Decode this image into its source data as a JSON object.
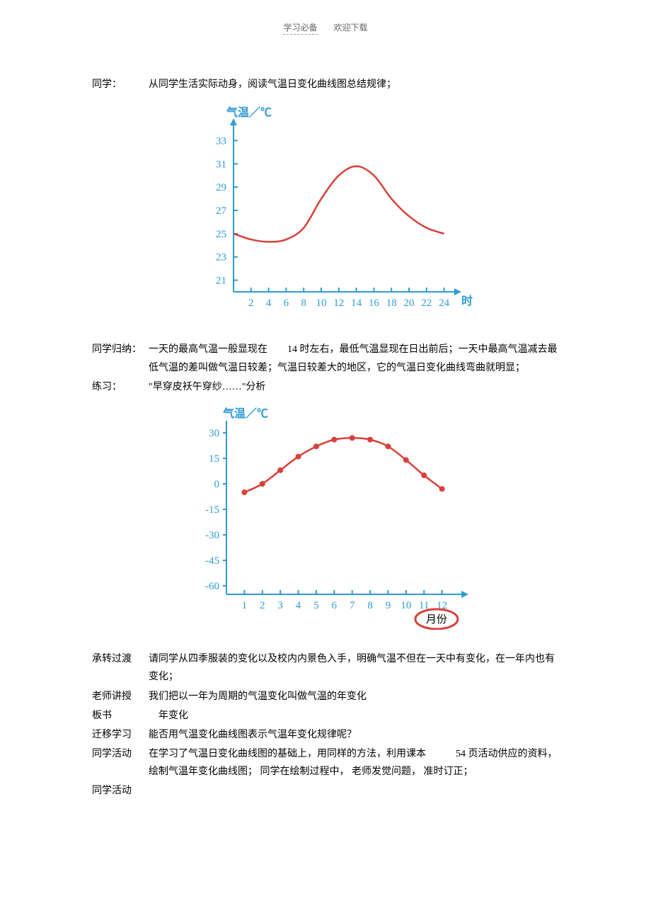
{
  "header": {
    "left": "学习必备",
    "right": "欢迎下载"
  },
  "rows": [
    {
      "label": "同学：",
      "text": "从同学生活实际动身，阅读气温日变化曲线图总结规律；"
    }
  ],
  "chart1": {
    "type": "line",
    "y_label": "气温／℃",
    "x_label": "时",
    "y_ticks": [
      21,
      23,
      25,
      27,
      29,
      31,
      33
    ],
    "x_ticks": [
      2,
      4,
      6,
      8,
      10,
      12,
      14,
      16,
      18,
      20,
      22,
      24
    ],
    "ylim": [
      20,
      34
    ],
    "xlim": [
      0,
      25
    ],
    "line_color": "#d9403a",
    "axis_color": "#2e9bd6",
    "text_color": "#2e9bd6",
    "line_width": 2.5,
    "axis_width": 2,
    "background": "#ffffff",
    "data": {
      "x": [
        0,
        2,
        4,
        6,
        8,
        10,
        12,
        14,
        16,
        18,
        20,
        22,
        24
      ],
      "y": [
        25,
        24.5,
        24.3,
        24.5,
        25.5,
        28,
        30,
        30.8,
        30,
        28,
        26.5,
        25.5,
        25
      ]
    }
  },
  "rows2": [
    {
      "label": "同学归纳：",
      "text": "一天的最高气温一般显现在　　14 时左右，最低气温显现在日出前后；一天中最高气温减去最低气温的差叫做气温日较差；气温日较差大的地区，它的气温日变化曲线弯曲就明显；"
    },
    {
      "label": "练习：",
      "text": "\"早穿皮袄午穿纱……\"分析"
    }
  ],
  "chart2": {
    "type": "line-marker",
    "y_label": "气温／℃",
    "x_label": "月份",
    "y_ticks": [
      -60,
      -45,
      -30,
      -15,
      0,
      15,
      30
    ],
    "x_ticks": [
      1,
      2,
      3,
      4,
      5,
      6,
      7,
      8,
      9,
      10,
      11,
      12
    ],
    "ylim": [
      -65,
      35
    ],
    "xlim": [
      0,
      13
    ],
    "line_color": "#d9403a",
    "marker_color": "#d9403a",
    "axis_color": "#2e9bd6",
    "text_color": "#2e9bd6",
    "line_width": 2.5,
    "axis_width": 2,
    "marker_size": 4,
    "circle_color": "#d9403a",
    "background": "#ffffff",
    "data": {
      "x": [
        1,
        2,
        3,
        4,
        5,
        6,
        7,
        8,
        9,
        10,
        11,
        12
      ],
      "y": [
        -5,
        0,
        8,
        16,
        22,
        26,
        27,
        26,
        22,
        14,
        5,
        -3
      ]
    }
  },
  "rows3": [
    {
      "label": "承转过渡",
      "text": "请同学从四季服装的变化以及校内内景色入手，明确气温不但在一天中有变化，在一年内也有变化；"
    },
    {
      "label": "老师讲授",
      "text": "我们把以一年为周期的气温变化叫做气温的年变化"
    },
    {
      "label": "板书",
      "text": "　年变化"
    },
    {
      "label": "迁移学习",
      "text": "能否用气温变化曲线图表示气温年变化规律呢？"
    },
    {
      "label": "同学活动",
      "text": "在学习了气温日变化曲线图的基础上，用同样的方法，利用课本　　　54 页活动供应的资料， 绘制气温年变化曲线图； 同学在绘制过程中， 老师发觉问题， 准时订正；"
    },
    {
      "label": "同学活动",
      "text": ""
    }
  ]
}
